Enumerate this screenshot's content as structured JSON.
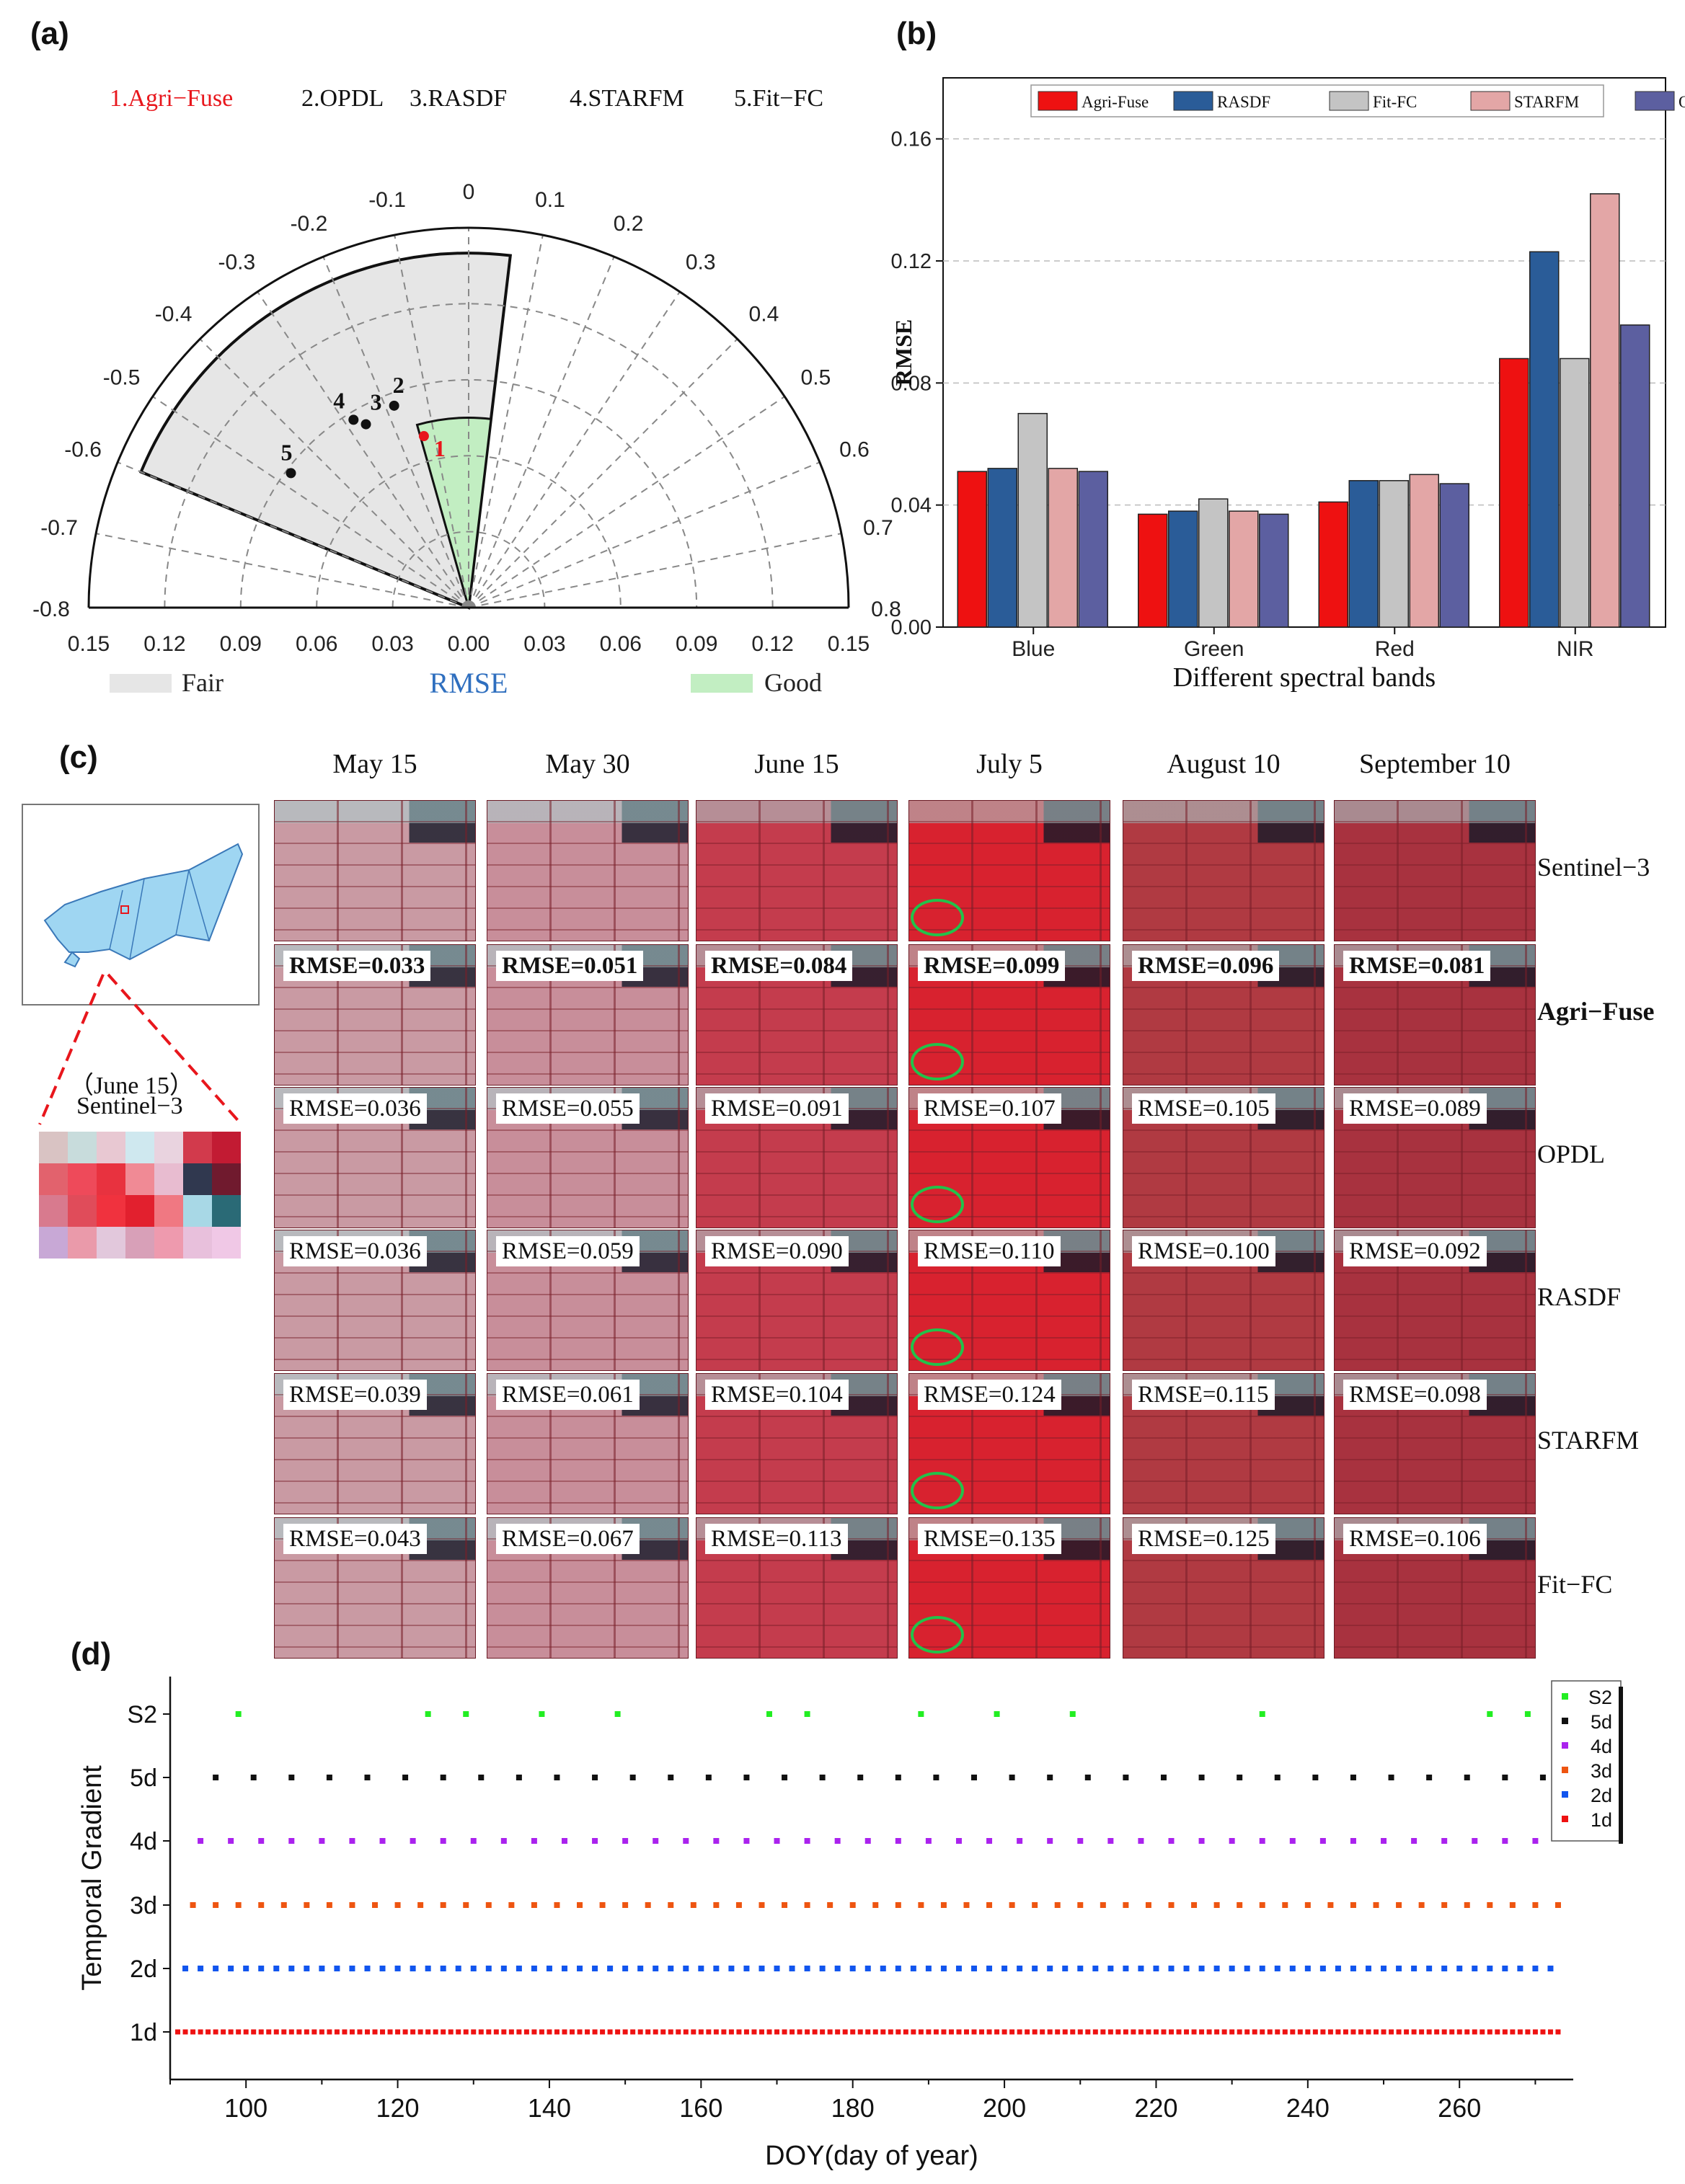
{
  "panel_letters": [
    "(a)",
    "(b)",
    "(c)",
    "(d)"
  ],
  "chart_data": [
    {
      "id": "a",
      "type": "scatter",
      "subtype": "polar-taylor-diagram",
      "title": "",
      "methods_legend": [
        {
          "label": "1.Agri−Fuse",
          "color": "#e8161c"
        },
        {
          "label": "2.OPDL",
          "color": "#111111"
        },
        {
          "label": "3.RASDF",
          "color": "#111111"
        },
        {
          "label": "4.STARFM",
          "color": "#111111"
        },
        {
          "label": "5.Fit−FC",
          "color": "#111111"
        }
      ],
      "angular_axis": {
        "range": [
          -0.8,
          0.8
        ],
        "tick_labels": [
          "-0.8",
          "-0.7",
          "-0.6",
          "-0.5",
          "-0.4",
          "-0.3",
          "-0.2",
          "-0.1",
          "0",
          "0.1",
          "0.2",
          "0.3",
          "0.4",
          "0.5",
          "0.6",
          "0.7",
          "0.8"
        ]
      },
      "radial_axis": {
        "label": "RMSE",
        "label_color": "#2f6fbf",
        "range": [
          0,
          0.15
        ],
        "tick_labels": [
          "0.15",
          "0.12",
          "0.09",
          "0.06",
          "0.03",
          "0.00",
          "0.03",
          "0.06",
          "0.09",
          "0.12",
          "0.15"
        ]
      },
      "regions": [
        {
          "label": "Fair",
          "color": "#e6e6e6",
          "angle_range": [
            -0.6,
            0.06
          ],
          "rmse_max": 0.14
        },
        {
          "label": "Good",
          "color": "#c2eec2",
          "angle_range": [
            -0.14,
            0.06
          ],
          "rmse_max": 0.075
        }
      ],
      "points": [
        {
          "label": "1",
          "bias": -0.13,
          "rmse": 0.07,
          "color": "#e8161c"
        },
        {
          "label": "2",
          "bias": -0.18,
          "rmse": 0.085,
          "color": "#111111"
        },
        {
          "label": "3",
          "bias": -0.26,
          "rmse": 0.083,
          "color": "#111111"
        },
        {
          "label": "4",
          "bias": -0.28,
          "rmse": 0.087,
          "color": "#111111"
        },
        {
          "label": "5",
          "bias": -0.47,
          "rmse": 0.088,
          "color": "#111111"
        }
      ]
    },
    {
      "id": "b",
      "type": "bar",
      "title": "",
      "categories": [
        "Blue",
        "Green",
        "Red",
        "NIR"
      ],
      "xlabel": "Different spectral bands",
      "ylabel": "RMSE",
      "ylim": [
        0,
        0.18
      ],
      "yticks": [
        "0.00",
        "0.04",
        "0.08",
        "0.12",
        "0.16"
      ],
      "ytick_values": [
        0,
        0.04,
        0.08,
        0.12,
        0.16
      ],
      "grid": "horizontal-dashed",
      "legend_position": "top",
      "series": [
        {
          "name": "Agri-Fuse",
          "color": "#ee1111",
          "values": [
            0.051,
            0.037,
            0.041,
            0.088
          ]
        },
        {
          "name": "RASDF",
          "color": "#2a5c98",
          "values": [
            0.052,
            0.038,
            0.048,
            0.123
          ]
        },
        {
          "name": "Fit-FC",
          "color": "#c4c4c4",
          "values": [
            0.07,
            0.042,
            0.048,
            0.088
          ]
        },
        {
          "name": "STARFM",
          "color": "#e3a6a6",
          "values": [
            0.052,
            0.038,
            0.05,
            0.142
          ]
        },
        {
          "name": "OPDL",
          "color": "#5c5fa0",
          "values": [
            0.051,
            0.037,
            0.047,
            0.099
          ]
        }
      ]
    },
    {
      "id": "d",
      "type": "scatter",
      "title": "",
      "xlabel": "DOY(day of year)",
      "ylabel": "Temporal Gradient",
      "xlim": [
        90,
        275
      ],
      "xticks": [
        100,
        120,
        140,
        160,
        180,
        200,
        220,
        240,
        260
      ],
      "categories": [
        "1d",
        "2d",
        "3d",
        "4d",
        "5d",
        "S2"
      ],
      "legend_position": "top-right",
      "legend_order": [
        "S2",
        "5d",
        "4d",
        "3d",
        "2d",
        "1d"
      ],
      "series": [
        {
          "name": "S2",
          "color": "#22ee22",
          "x": [
            99,
            124,
            129,
            139,
            149,
            169,
            174,
            189,
            199,
            209,
            234,
            264,
            269
          ]
        },
        {
          "name": "5d",
          "color": "#111111",
          "start": 96,
          "end": 271,
          "step": 5
        },
        {
          "name": "4d",
          "color": "#aa22ee",
          "start": 94,
          "end": 270,
          "step": 4
        },
        {
          "name": "3d",
          "color": "#ee5511",
          "start": 93,
          "end": 273,
          "step": 3
        },
        {
          "name": "2d",
          "color": "#1155ee",
          "start": 92,
          "end": 272,
          "step": 2
        },
        {
          "name": "1d",
          "color": "#ee1111",
          "start": 91,
          "end": 273,
          "step": 1
        }
      ]
    }
  ],
  "panel_c": {
    "dates": [
      "May 15",
      "May 30",
      "June 15",
      "July 5",
      "August 10",
      "September 10"
    ],
    "rows": [
      {
        "name": "Sentinel−3",
        "bold": false,
        "rmse": []
      },
      {
        "name": "Agri−Fuse",
        "bold": true,
        "rmse": [
          "RMSE=0.033",
          "RMSE=0.051",
          "RMSE=0.084",
          "RMSE=0.099",
          "RMSE=0.096",
          "RMSE=0.081"
        ]
      },
      {
        "name": "OPDL",
        "bold": false,
        "rmse": [
          "RMSE=0.036",
          "RMSE=0.055",
          "RMSE=0.091",
          "RMSE=0.107",
          "RMSE=0.105",
          "RMSE=0.089"
        ]
      },
      {
        "name": "RASDF",
        "bold": false,
        "rmse": [
          "RMSE=0.036",
          "RMSE=0.059",
          "RMSE=0.090",
          "RMSE=0.110",
          "RMSE=0.100",
          "RMSE=0.092"
        ]
      },
      {
        "name": "STARFM",
        "bold": false,
        "rmse": [
          "RMSE=0.039",
          "RMSE=0.061",
          "RMSE=0.104",
          "RMSE=0.124",
          "RMSE=0.115",
          "RMSE=0.098"
        ]
      },
      {
        "name": "Fit−FC",
        "bold": false,
        "rmse": [
          "RMSE=0.043",
          "RMSE=0.067",
          "RMSE=0.113",
          "RMSE=0.135",
          "RMSE=0.125",
          "RMSE=0.106"
        ]
      }
    ],
    "inset_label_line1": "（June 15）",
    "inset_label_line2": "Sentinel−3"
  }
}
